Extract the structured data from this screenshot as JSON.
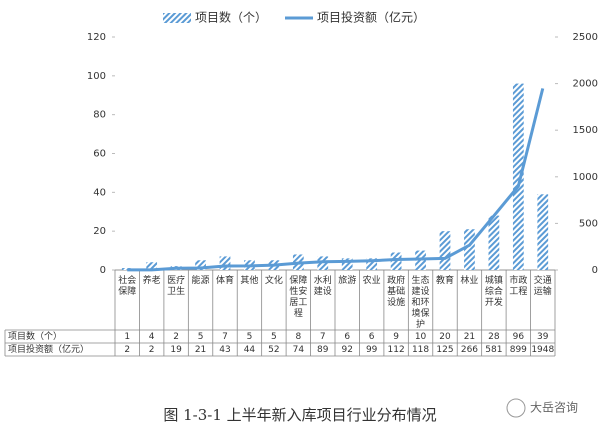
{
  "chart_data": {
    "type": "bar-line",
    "title": "图 1-3-1    上半年新入库项目行业分布情况",
    "categories": [
      "社会保障",
      "养老",
      "医疗卫生",
      "能源",
      "体育",
      "其他",
      "文化",
      "保障性安居工程",
      "水利建设",
      "旅游",
      "农业",
      "政府基础设施",
      "生态建设和环境保护",
      "教育",
      "林业",
      "城镇综合开发",
      "市政工程",
      "交通运输"
    ],
    "series": [
      {
        "name": "项目数（个）",
        "type": "bar",
        "color": "#5b9bd5",
        "values": [
          1,
          4,
          2,
          5,
          7,
          5,
          5,
          8,
          7,
          6,
          6,
          9,
          10,
          20,
          21,
          28,
          96,
          39
        ]
      },
      {
        "name": "项目投资额（亿元）",
        "type": "line",
        "axis": "y2",
        "color": "#5b9bd5",
        "values": [
          2,
          2,
          19,
          21,
          43,
          44,
          52,
          74,
          89,
          92,
          99,
          112,
          118,
          125,
          266,
          581,
          899,
          1948
        ]
      }
    ],
    "ylim": [
      0,
      120
    ],
    "yticks": [
      0,
      20,
      40,
      60,
      80,
      100,
      120
    ],
    "y2lim": [
      0,
      2500
    ],
    "y2ticks": [
      0,
      500,
      1000,
      1500,
      2000,
      2500
    ]
  },
  "watermark": "大岳咨询"
}
